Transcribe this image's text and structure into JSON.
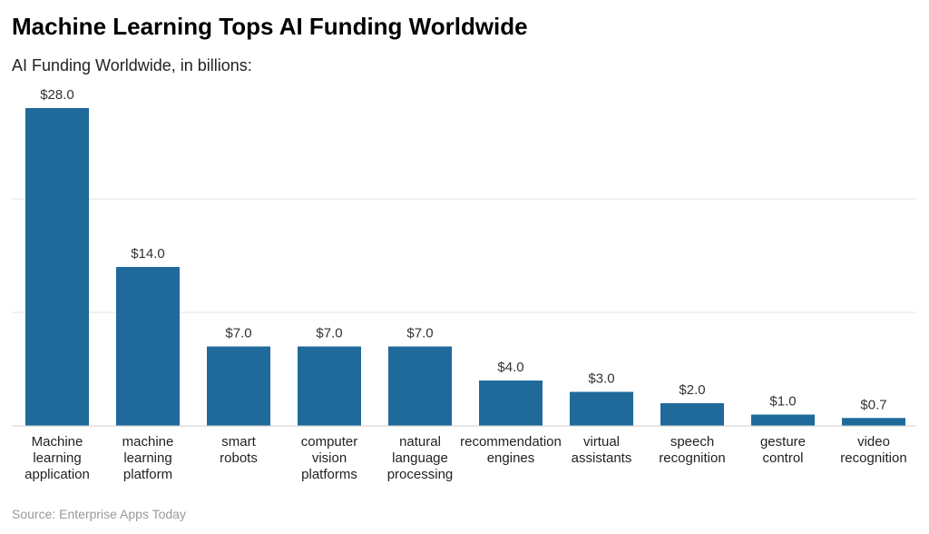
{
  "title": "Machine Learning Tops AI Funding Worldwide",
  "subtitle": "AI Funding Worldwide, in billions:",
  "source": "Source: Enterprise Apps Today",
  "chart_data": {
    "type": "bar",
    "categories": [
      "Machine learning application",
      "machine learning platform",
      "smart robots",
      "computer vision platforms",
      "natural language processing",
      "recommendation engines",
      "virtual assistants",
      "speech recognition",
      "gesture control",
      "video recognition"
    ],
    "category_lines": [
      [
        "Machine",
        "learning",
        "application"
      ],
      [
        "machine",
        "learning",
        "platform"
      ],
      [
        "smart",
        "robots"
      ],
      [
        "computer",
        "vision",
        "platforms"
      ],
      [
        "natural",
        "language",
        "processing"
      ],
      [
        "recommendation",
        "engines"
      ],
      [
        "virtual",
        "assistants"
      ],
      [
        "speech",
        "recognition"
      ],
      [
        "gesture",
        "control"
      ],
      [
        "video",
        "recognition"
      ]
    ],
    "values": [
      28.0,
      14.0,
      7.0,
      7.0,
      7.0,
      4.0,
      3.0,
      2.0,
      1.0,
      0.7
    ],
    "data_labels": [
      "$28.0",
      "$14.0",
      "$7.0",
      "$7.0",
      "$7.0",
      "$4.0",
      "$3.0",
      "$2.0",
      "$1.0",
      "$0.7"
    ],
    "ylim": [
      0,
      28
    ],
    "gridlines": [
      10,
      20
    ],
    "grid": true,
    "bar_color": "#1f6a9a",
    "title": "Machine Learning Tops AI Funding Worldwide"
  }
}
